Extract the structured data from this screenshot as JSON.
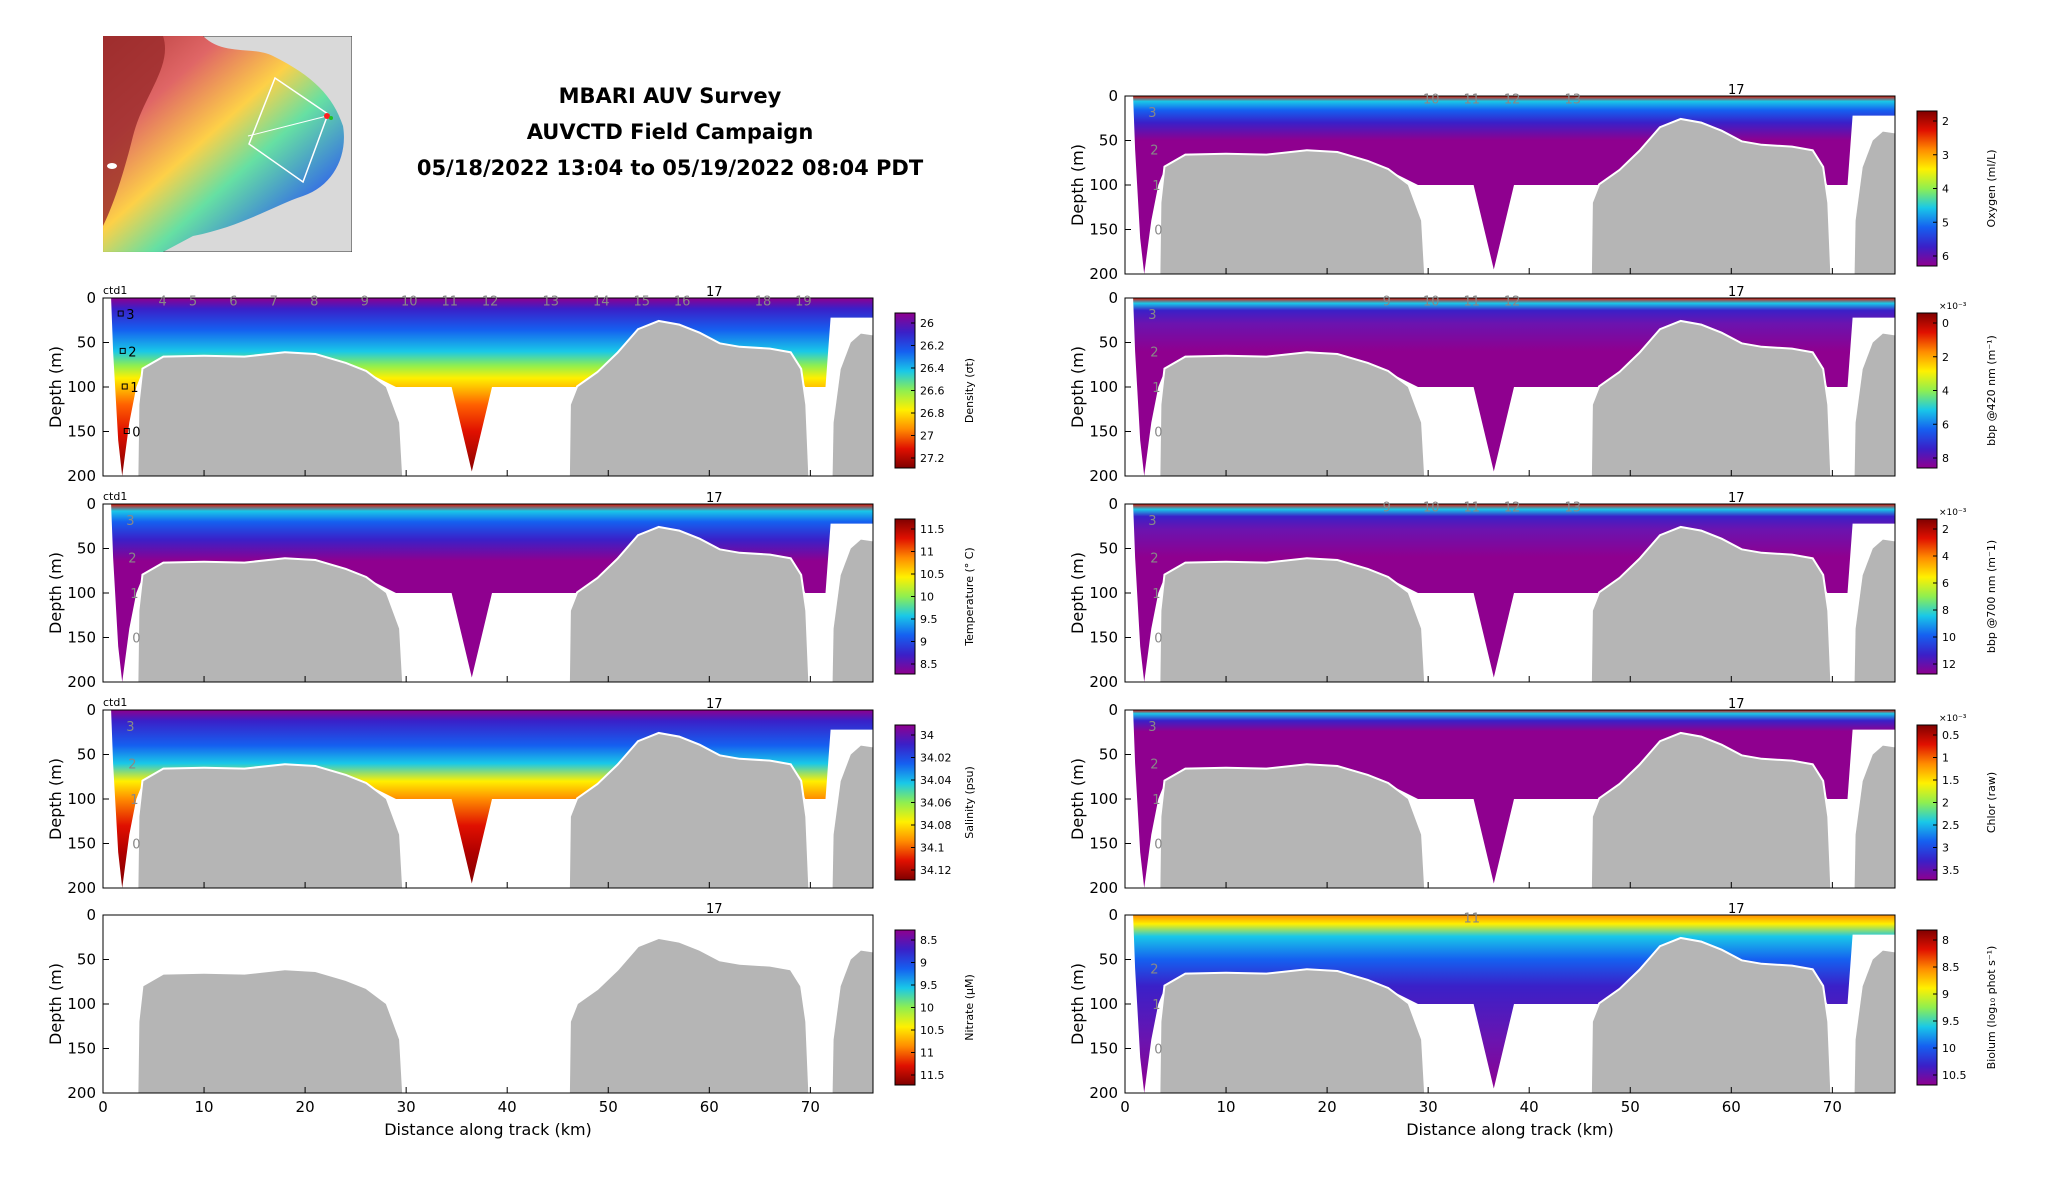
{
  "header": {
    "title_lines": [
      "MBARI AUV Survey",
      "AUVCTD Field Campaign",
      "05/18/2022 13:04 to 05/19/2022 08:04 PDT"
    ]
  },
  "colors": {
    "terrain": "#b5b5b5",
    "background": "#ffffff",
    "jet": [
      "#8f008f",
      "#3a20c8",
      "#1560f0",
      "#19c8e8",
      "#8fef50",
      "#fff000",
      "#ff8c00",
      "#e01000",
      "#800000"
    ]
  },
  "shared_axes": {
    "xlabel": "Distance along track (km)",
    "ylabel": "Depth (m)",
    "xlim": [
      0,
      76.2
    ],
    "ylim": [
      200,
      0
    ],
    "xticks": [
      "0",
      "10",
      "20",
      "30",
      "40",
      "50",
      "60",
      "70"
    ],
    "yticks": [
      "0",
      "50",
      "100",
      "150",
      "200"
    ]
  },
  "chart_data": [
    {
      "type": "heatmap",
      "panel": "density",
      "tag": "ctd1",
      "colorbar_label": "Density (σt)",
      "colorbar_ticks": [
        "26",
        "26.2",
        "26.4",
        "26.6",
        "26.8",
        "27",
        "27.2"
      ],
      "colorbar_reversed": true,
      "station_labels": [
        "3",
        "2",
        "1",
        "0",
        "4",
        "5",
        "6",
        "7",
        "8",
        "9",
        "10",
        "11",
        "12",
        "13",
        "14",
        "15",
        "16",
        "17",
        "18",
        "19"
      ],
      "marker_labels": [
        "3",
        "2",
        "1",
        "0"
      ]
    },
    {
      "type": "heatmap",
      "panel": "temperature",
      "tag": "ctd1",
      "colorbar_label": "Temperature (° C)",
      "colorbar_ticks": [
        "11.5",
        "11",
        "10.5",
        "10",
        "9.5",
        "9",
        "8.5"
      ],
      "colorbar_reversed": false,
      "station_labels": [
        "3",
        "2",
        "1",
        "0",
        "17"
      ]
    },
    {
      "type": "heatmap",
      "panel": "salinity",
      "tag": "ctd1",
      "colorbar_label": "Salinity (psu)",
      "colorbar_ticks": [
        "34",
        "34.02",
        "34.04",
        "34.06",
        "34.08",
        "34.1",
        "34.12"
      ],
      "colorbar_reversed": true,
      "station_labels": [
        "3",
        "2",
        "1",
        "0",
        "17"
      ]
    },
    {
      "type": "heatmap",
      "panel": "nitrate",
      "tag": "",
      "colorbar_label": "Nitrate (μM)",
      "colorbar_ticks": [
        "8.5",
        "9",
        "9.5",
        "10",
        "10.5",
        "11",
        "11.5"
      ],
      "colorbar_reversed": true,
      "station_labels": [
        "17"
      ],
      "empty": true
    },
    {
      "type": "heatmap",
      "panel": "oxygen",
      "tag": "",
      "colorbar_label": "Oxygen (ml/L)",
      "colorbar_ticks": [
        "2",
        "3",
        "4",
        "5",
        "6"
      ],
      "colorbar_reversed": false,
      "station_labels": [
        "3",
        "2",
        "1",
        "0",
        "10",
        "11",
        "12",
        "13",
        "17"
      ]
    },
    {
      "type": "heatmap",
      "panel": "bbp420",
      "tag": "",
      "colorbar_label": "bbp @420 nm (m⁻¹)",
      "colorbar_exponent": "×10⁻³",
      "colorbar_ticks": [
        "0",
        "2",
        "4",
        "6",
        "8"
      ],
      "colorbar_reversed": false,
      "station_labels": [
        "3",
        "2",
        "1",
        "0",
        "9",
        "10",
        "11",
        "12",
        "17"
      ]
    },
    {
      "type": "heatmap",
      "panel": "bbp700",
      "tag": "",
      "colorbar_label": "bbp @700 nm (m⁻1)",
      "colorbar_exponent": "×10⁻³",
      "colorbar_ticks": [
        "2",
        "4",
        "6",
        "8",
        "10",
        "12"
      ],
      "colorbar_reversed": false,
      "station_labels": [
        "3",
        "2",
        "1",
        "0",
        "9",
        "10",
        "11",
        "12",
        "13",
        "17"
      ]
    },
    {
      "type": "heatmap",
      "panel": "chlor",
      "tag": "",
      "colorbar_label": "Chlor (raw)",
      "colorbar_exponent": "×10⁻³",
      "colorbar_ticks": [
        "0.5",
        "1",
        "1.5",
        "2",
        "2.5",
        "3",
        "3.5"
      ],
      "colorbar_reversed": false,
      "station_labels": [
        "3",
        "2",
        "1",
        "0",
        "17"
      ]
    },
    {
      "type": "heatmap",
      "panel": "biolum",
      "tag": "",
      "colorbar_label": "Biolum (log₁₀ phot s⁻¹)",
      "colorbar_ticks": [
        "8",
        "8.5",
        "9",
        "9.5",
        "10",
        "10.5"
      ],
      "colorbar_reversed": false,
      "station_labels": [
        "2",
        "1",
        "0",
        "11",
        "17"
      ]
    }
  ]
}
